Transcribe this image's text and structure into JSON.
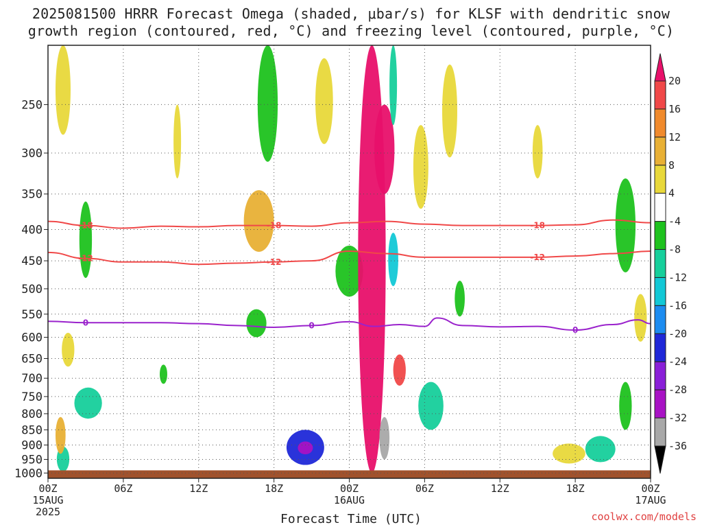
{
  "chart_data": {
    "type": "heatmap",
    "title_line1": "2025081500 HRRR Forecast Omega (shaded, μbar/s) for KLSF with dendritic snow",
    "title_line2": "growth region (contoured, red, °C) and freezing level (contoured, purple, °C)",
    "xlabel": "Forecast Time (UTC)",
    "credit": "coolwx.com/models",
    "y_ticks": [
      250,
      300,
      350,
      400,
      450,
      500,
      550,
      600,
      650,
      700,
      750,
      800,
      850,
      900,
      950,
      1000
    ],
    "y_scale": "log-pressure (hPa), inverted",
    "ylim": [
      200,
      1020
    ],
    "x_ticks": [
      {
        "hour": 0,
        "label": "00Z",
        "date": "15AUG",
        "year": "2025"
      },
      {
        "hour": 6,
        "label": "06Z"
      },
      {
        "hour": 12,
        "label": "12Z"
      },
      {
        "hour": 18,
        "label": "18Z"
      },
      {
        "hour": 24,
        "label": "00Z",
        "date": "16AUG"
      },
      {
        "hour": 30,
        "label": "06Z"
      },
      {
        "hour": 36,
        "label": "12Z"
      },
      {
        "hour": 42,
        "label": "18Z"
      },
      {
        "hour": 48,
        "label": "00Z",
        "date": "17AUG"
      }
    ],
    "xlim": [
      0,
      48
    ],
    "colorbar": {
      "ticks": [
        20,
        16,
        12,
        8,
        4,
        -4,
        -8,
        -12,
        -16,
        -20,
        -24,
        -28,
        -32,
        -36
      ],
      "colors": [
        "#e8106a",
        "#f04848",
        "#f08a2c",
        "#e8b035",
        "#e8d83a",
        "#ffffff",
        "#1ec21e",
        "#16cf9b",
        "#12c8d6",
        "#1c8cf0",
        "#1f28d8",
        "#8a1fd8",
        "#a812c4",
        "#a8a8a8",
        "#000000"
      ]
    },
    "contours": [
      {
        "name": "-18",
        "color": "#f04848",
        "points": [
          [
            0,
            388
          ],
          [
            3,
            394
          ],
          [
            6,
            398
          ],
          [
            9,
            395
          ],
          [
            12,
            396
          ],
          [
            15,
            394
          ],
          [
            18,
            394
          ],
          [
            21,
            395
          ],
          [
            24,
            390
          ],
          [
            27,
            388
          ],
          [
            30,
            392
          ],
          [
            33,
            394
          ],
          [
            36,
            394
          ],
          [
            39,
            394
          ],
          [
            42,
            393
          ],
          [
            45,
            386
          ],
          [
            48,
            390
          ]
        ]
      },
      {
        "name": "-12",
        "color": "#f04848",
        "points": [
          [
            0,
            436
          ],
          [
            3,
            446
          ],
          [
            6,
            452
          ],
          [
            9,
            452
          ],
          [
            12,
            456
          ],
          [
            15,
            454
          ],
          [
            18,
            452
          ],
          [
            21,
            450
          ],
          [
            24,
            434
          ],
          [
            27,
            438
          ],
          [
            30,
            444
          ],
          [
            33,
            444
          ],
          [
            36,
            444
          ],
          [
            39,
            444
          ],
          [
            42,
            442
          ],
          [
            45,
            438
          ],
          [
            48,
            434
          ]
        ]
      },
      {
        "name": "0",
        "color": "#9a22cc",
        "points": [
          [
            0,
            565
          ],
          [
            3,
            568
          ],
          [
            6,
            568
          ],
          [
            9,
            568
          ],
          [
            12,
            570
          ],
          [
            15,
            574
          ],
          [
            18,
            578
          ],
          [
            21,
            574
          ],
          [
            24,
            566
          ],
          [
            26,
            576
          ],
          [
            28,
            572
          ],
          [
            30,
            576
          ],
          [
            31,
            558
          ],
          [
            33,
            574
          ],
          [
            36,
            577
          ],
          [
            39,
            576
          ],
          [
            42,
            584
          ],
          [
            45,
            572
          ],
          [
            47,
            562
          ],
          [
            48,
            570
          ]
        ]
      }
    ],
    "omega_cells": [
      {
        "t": 1.2,
        "p": 950,
        "rt": 0.5,
        "rp": 45,
        "v": -12
      },
      {
        "t": 1.0,
        "p": 870,
        "rt": 0.4,
        "rp": 60,
        "v": 8
      },
      {
        "t": 3.2,
        "p": 770,
        "rt": 1.1,
        "rp": 45,
        "v": -10
      },
      {
        "t": 3.0,
        "p": 420,
        "rt": 0.5,
        "rp": 60,
        "v": -6
      },
      {
        "t": 1.6,
        "p": 630,
        "rt": 0.5,
        "rp": 40,
        "v": 6
      },
      {
        "t": 1.2,
        "p": 230,
        "rt": 0.6,
        "rp": 50,
        "v": 6
      },
      {
        "t": 9.2,
        "p": 690,
        "rt": 0.3,
        "rp": 25,
        "v": -6
      },
      {
        "t": 10.3,
        "p": 290,
        "rt": 0.3,
        "rp": 40,
        "v": 6
      },
      {
        "t": 16.8,
        "p": 390,
        "rt": 1.2,
        "rp": 45,
        "v": 10
      },
      {
        "t": 16.6,
        "p": 570,
        "rt": 0.8,
        "rp": 30,
        "v": -8
      },
      {
        "t": 20.5,
        "p": 910,
        "rt": 1.5,
        "rp": 60,
        "v": -22
      },
      {
        "t": 20.5,
        "p": 910,
        "rt": 0.6,
        "rp": 22,
        "v": -32
      },
      {
        "t": 17.5,
        "p": 255,
        "rt": 0.8,
        "rp": 55,
        "v": -6
      },
      {
        "t": 22.0,
        "p": 250,
        "rt": 0.7,
        "rp": 40,
        "v": 6
      },
      {
        "t": 24.0,
        "p": 470,
        "rt": 1.1,
        "rp": 45,
        "v": -6
      },
      {
        "t": 25.8,
        "p": 600,
        "rt": 1.1,
        "rp": 400,
        "v": 20
      },
      {
        "t": 26.8,
        "p": 880,
        "rt": 0.4,
        "rp": 70,
        "v": -36
      },
      {
        "t": 26.8,
        "p": 300,
        "rt": 0.8,
        "rp": 50,
        "v": 20
      },
      {
        "t": 27.5,
        "p": 230,
        "rt": 0.3,
        "rp": 40,
        "v": -12
      },
      {
        "t": 27.5,
        "p": 450,
        "rt": 0.4,
        "rp": 45,
        "v": -14
      },
      {
        "t": 28.0,
        "p": 680,
        "rt": 0.5,
        "rp": 40,
        "v": 16
      },
      {
        "t": 29.7,
        "p": 320,
        "rt": 0.6,
        "rp": 50,
        "v": 6
      },
      {
        "t": 30.5,
        "p": 780,
        "rt": 1.0,
        "rp": 70,
        "v": -10
      },
      {
        "t": 32.8,
        "p": 520,
        "rt": 0.4,
        "rp": 35,
        "v": -6
      },
      {
        "t": 32.0,
        "p": 260,
        "rt": 0.6,
        "rp": 45,
        "v": 6
      },
      {
        "t": 41.5,
        "p": 930,
        "rt": 1.3,
        "rp": 35,
        "v": 6
      },
      {
        "t": 44.0,
        "p": 915,
        "rt": 1.2,
        "rp": 45,
        "v": -10
      },
      {
        "t": 46.0,
        "p": 780,
        "rt": 0.5,
        "rp": 70,
        "v": -8
      },
      {
        "t": 46.0,
        "p": 400,
        "rt": 0.8,
        "rp": 70,
        "v": -8
      },
      {
        "t": 47.2,
        "p": 560,
        "rt": 0.5,
        "rp": 50,
        "v": 6
      },
      {
        "t": 39.0,
        "p": 300,
        "rt": 0.4,
        "rp": 30,
        "v": 6
      }
    ],
    "ground": {
      "p_top": 990,
      "color": "#a0522d"
    },
    "grid": "dotted"
  }
}
